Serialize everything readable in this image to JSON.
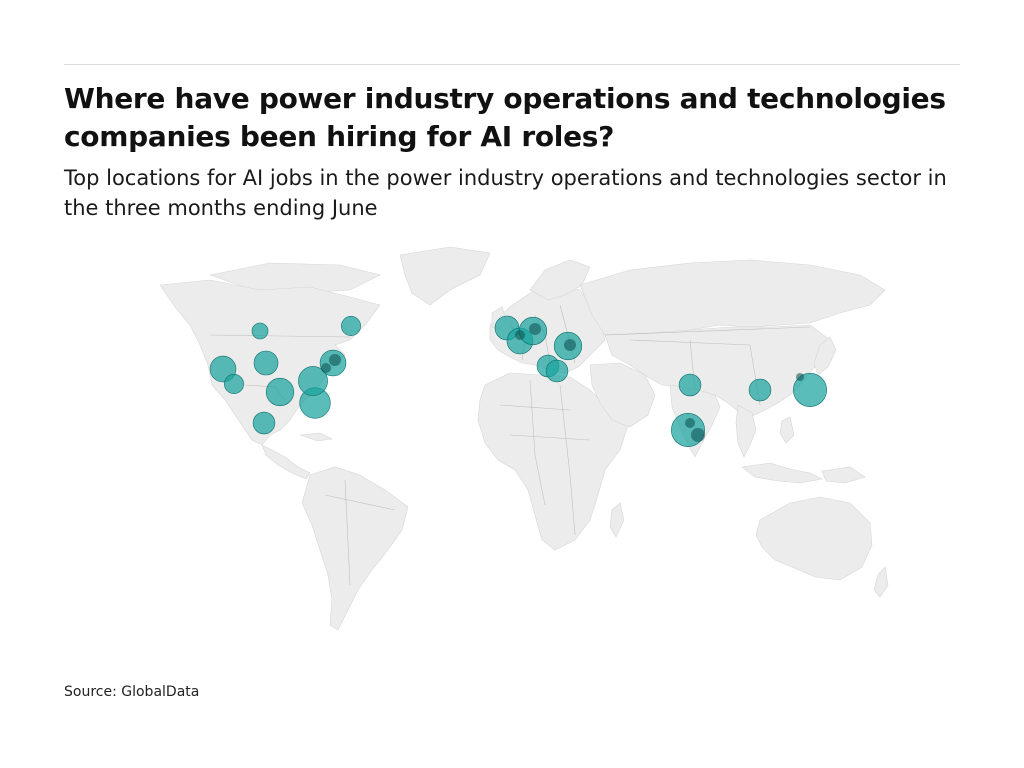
{
  "header": {
    "title": "Where have power industry operations and technologies companies been hiring for AI roles?",
    "subtitle": "Top locations for AI jobs in the power industry operations and technologies sector in the three months ending June"
  },
  "footer": {
    "source": "Source: GlobalData"
  },
  "map": {
    "projection": "world",
    "land_color": "#ececec",
    "border_color": "#9a9a9a",
    "bubble_color": "#1aa39f",
    "bubble_opacity": 0.72,
    "bubble_stroke": "#0e6f6c",
    "locations": [
      {
        "region": "US West Coast",
        "size": 5
      },
      {
        "region": "US Southwest",
        "size": 2
      },
      {
        "region": "US Mountain",
        "size": 4
      },
      {
        "region": "US Texas",
        "size": 6
      },
      {
        "region": "US Gulf Coast",
        "size": 8
      },
      {
        "region": "US Midwest",
        "size": 7
      },
      {
        "region": "US Northeast",
        "size": 5
      },
      {
        "region": "Canada Prairies",
        "size": 1
      },
      {
        "region": "Canada East",
        "size": 2
      },
      {
        "region": "Mexico",
        "size": 3
      },
      {
        "region": "UK",
        "size": 4
      },
      {
        "region": "France",
        "size": 5
      },
      {
        "region": "Germany",
        "size": 6
      },
      {
        "region": "Italy",
        "size": 3
      },
      {
        "region": "Eastern Europe",
        "size": 6
      },
      {
        "region": "Greece",
        "size": 3
      },
      {
        "region": "India North",
        "size": 3
      },
      {
        "region": "India South",
        "size": 10
      },
      {
        "region": "Southeast Asia",
        "size": 3
      },
      {
        "region": "China East",
        "size": 10
      }
    ]
  }
}
